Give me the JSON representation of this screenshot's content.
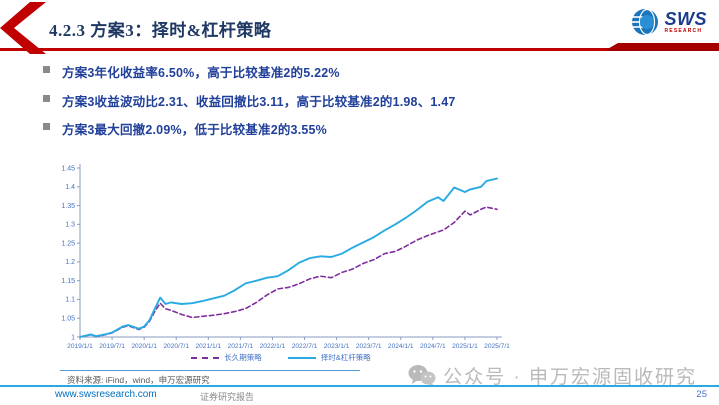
{
  "header": {
    "title": "4.2.3 方案3：择时&杠杆策略",
    "logo_sws": "SWS",
    "logo_research": "RESEARCH"
  },
  "bullets": [
    "方案3年化收益率6.50%，高于比较基准2的5.22%",
    "方案3收益波动比2.31、收益回撤比3.11，高于比较基准2的1.98、1.47",
    "方案3最大回撤2.09%，低于比较基准2的3.55%"
  ],
  "chart_data": {
    "type": "line",
    "title": "",
    "xlabel": "",
    "ylabel": "",
    "ylim": [
      1,
      1.45
    ],
    "y_ticks": [
      "1",
      "1.05",
      "1.1",
      "1.15",
      "1.2",
      "1.25",
      "1.3",
      "1.35",
      "1.4",
      "1.45"
    ],
    "x_tick_labels": [
      "2019/1/1",
      "2019/7/1",
      "2020/1/1",
      "2020/7/1",
      "2021/1/1",
      "2021/7/1",
      "2022/1/1",
      "2022/7/1",
      "2023/1/1",
      "2023/7/1",
      "2024/1/1",
      "2024/7/1",
      "2025/1/1",
      "2025/7/1"
    ],
    "x_unit": "months-since-2019-01",
    "x": [
      0,
      2,
      3,
      5,
      6,
      8,
      9,
      11,
      12,
      13,
      14,
      15,
      16,
      17,
      19,
      21,
      23,
      25,
      27,
      29,
      31,
      33,
      35,
      37,
      39,
      41,
      43,
      45,
      47,
      49,
      51,
      53,
      55,
      57,
      59,
      61,
      63,
      65,
      67,
      68,
      70,
      72,
      73,
      75,
      76,
      78
    ],
    "grid": false,
    "legend_position": "bottom",
    "axis_color": "#8A9CC2",
    "tick_label_color": "#4472C4",
    "series": [
      {
        "name": "长久期策略",
        "color": "#7D2E9E",
        "style": "dashed",
        "values": [
          1.0,
          1.006,
          1.001,
          1.007,
          1.011,
          1.026,
          1.03,
          1.02,
          1.026,
          1.042,
          1.068,
          1.09,
          1.075,
          1.071,
          1.06,
          1.052,
          1.055,
          1.058,
          1.062,
          1.068,
          1.076,
          1.092,
          1.112,
          1.128,
          1.132,
          1.142,
          1.155,
          1.162,
          1.158,
          1.172,
          1.181,
          1.196,
          1.206,
          1.222,
          1.228,
          1.242,
          1.258,
          1.27,
          1.28,
          1.285,
          1.305,
          1.335,
          1.325,
          1.34,
          1.346,
          1.34
        ]
      },
      {
        "name": "择时&杠杆策略",
        "color": "#29ABE2",
        "style": "solid",
        "values": [
          1.0,
          1.007,
          1.002,
          1.008,
          1.012,
          1.028,
          1.032,
          1.022,
          1.028,
          1.045,
          1.075,
          1.105,
          1.088,
          1.092,
          1.088,
          1.09,
          1.096,
          1.103,
          1.11,
          1.125,
          1.143,
          1.15,
          1.158,
          1.162,
          1.178,
          1.198,
          1.21,
          1.215,
          1.213,
          1.222,
          1.238,
          1.252,
          1.266,
          1.284,
          1.3,
          1.318,
          1.338,
          1.36,
          1.372,
          1.362,
          1.398,
          1.386,
          1.393,
          1.4,
          1.415,
          1.422
        ]
      }
    ]
  },
  "source_note": "资料来源: iFind，wind，申万宏源研究",
  "wechat_label": "公众号 · 申万宏源固收研究",
  "footer": {
    "url": "www.swsresearch.com",
    "report_type": "证券研究报告",
    "page_number": "25"
  },
  "colors": {
    "accent_red": "#C00000",
    "title_navy": "#1F3864",
    "bullet_navy": "#21409A",
    "footer_cyan": "#29ABE2"
  }
}
